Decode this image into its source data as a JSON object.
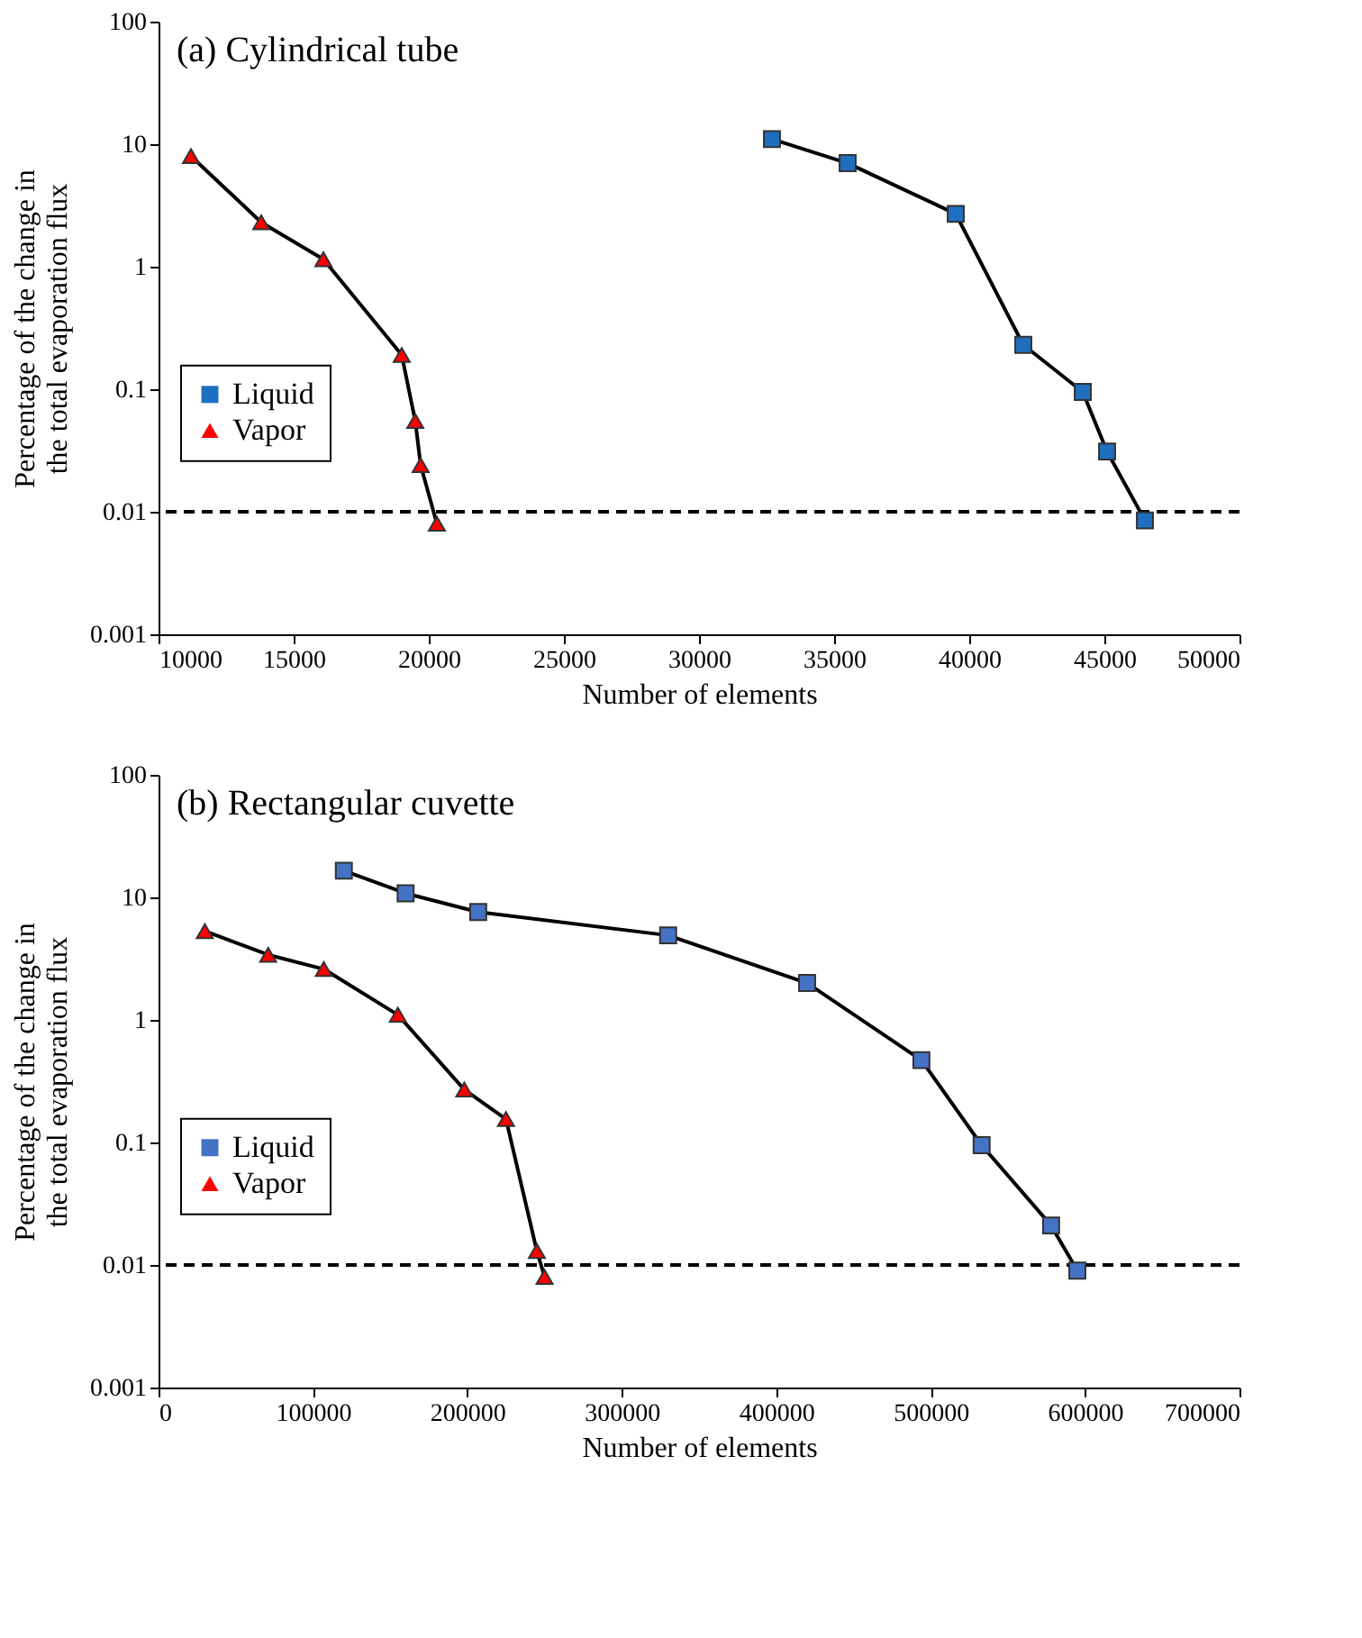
{
  "chart_data": [
    {
      "type": "line",
      "title": "(a) Cylindrical tube",
      "xlabel": "Number of elements",
      "ylabel": "Percentage of the change in the total evaporation flux",
      "log": "y",
      "xlim": [
        10000,
        50000
      ],
      "xticks": [
        10000,
        15000,
        20000,
        25000,
        30000,
        35000,
        40000,
        45000,
        50000
      ],
      "ylim": [
        0.001,
        100
      ],
      "yticks": [
        0.001,
        0.01,
        0.1,
        1,
        10,
        100
      ],
      "grid": false,
      "legend": "left",
      "line_style": "solid",
      "series": [
        {
          "name": "Liquid",
          "color": "#1f6fc0",
          "marker": "square",
          "x": [
            32700,
            35500,
            39500,
            42000,
            44200,
            45100,
            46500
          ],
          "values": [
            11,
            7,
            2.7,
            0.23,
            0.095,
            0.031,
            0.0085
          ]
        },
        {
          "name": "Vapor",
          "color": "#ff0000",
          "marker": "triangle",
          "x": [
            11200,
            13800,
            16100,
            19000,
            19500,
            19700,
            20300
          ],
          "values": [
            8,
            2.3,
            1.15,
            0.19,
            0.055,
            0.024,
            0.008
          ]
        }
      ],
      "ref_lines": [
        {
          "axis": "y",
          "value": 0.01,
          "line_style": "dashed",
          "color": "#000000"
        }
      ]
    },
    {
      "type": "line",
      "title": "(b) Rectangular cuvette",
      "xlabel": "Number of elements",
      "ylabel": "Percentage of the change in the total evaporation flux",
      "log": "y",
      "xlim": [
        0,
        700000
      ],
      "xticks": [
        0,
        100000,
        200000,
        300000,
        400000,
        500000,
        600000,
        700000
      ],
      "ylim": [
        0.001,
        100
      ],
      "yticks": [
        0.001,
        0.01,
        0.1,
        1,
        10,
        100
      ],
      "grid": false,
      "legend": "left",
      "line_style": "solid",
      "series": [
        {
          "name": "Liquid",
          "color": "#4472c4",
          "marker": "square",
          "x": [
            120000,
            160000,
            207000,
            330000,
            420000,
            494000,
            533000,
            578000,
            595000
          ],
          "values": [
            16.5,
            10.8,
            7.6,
            4.9,
            2.0,
            0.47,
            0.095,
            0.021,
            0.009
          ]
        },
        {
          "name": "Vapor",
          "color": "#ff0000",
          "marker": "triangle",
          "x": [
            30000,
            71000,
            107000,
            155000,
            198000,
            225000,
            245000,
            250000
          ],
          "values": [
            5.3,
            3.4,
            2.6,
            1.1,
            0.27,
            0.155,
            0.013,
            0.008
          ]
        }
      ],
      "ref_lines": [
        {
          "axis": "y",
          "value": 0.01,
          "line_style": "dashed",
          "color": "#000000"
        }
      ]
    }
  ]
}
